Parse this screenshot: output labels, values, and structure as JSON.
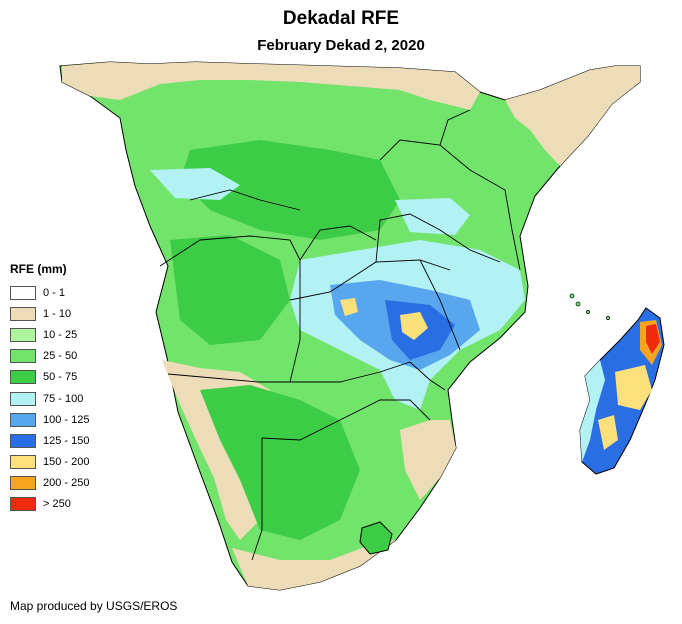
{
  "header": {
    "title": "Dekadal RFE",
    "subtitle": "February Dekad 2, 2020"
  },
  "legend": {
    "title": "RFE (mm)",
    "items": [
      {
        "label": "0 - 1",
        "color": "#ffffff"
      },
      {
        "label": "1 - 10",
        "color": "#eddcb8"
      },
      {
        "label": "10 - 25",
        "color": "#aef59e"
      },
      {
        "label": "25 - 50",
        "color": "#72e46c"
      },
      {
        "label": "50 - 75",
        "color": "#3ccc45"
      },
      {
        "label": "75 - 100",
        "color": "#b2f1f4"
      },
      {
        "label": "100 - 125",
        "color": "#57a6ee"
      },
      {
        "label": "125 - 150",
        "color": "#2a6ee3"
      },
      {
        "label": "150 - 200",
        "color": "#fce07c"
      },
      {
        "label": "200 - 250",
        "color": "#f7a51e"
      },
      {
        "label": "> 250",
        "color": "#f02a0e"
      }
    ]
  },
  "credit": "Map produced by USGS/EROS"
}
